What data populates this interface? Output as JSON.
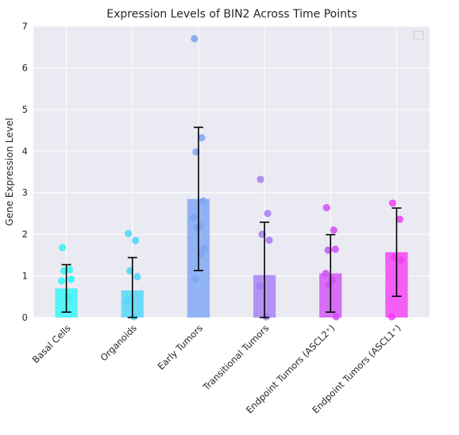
{
  "chart_data": {
    "type": "bar",
    "title": "Expression Levels of BIN2 Across Time Points",
    "xlabel": "",
    "ylabel": "Gene Expression Level",
    "ylim": [
      0,
      7
    ],
    "yticks": [
      0,
      1,
      2,
      3,
      4,
      5,
      6,
      7
    ],
    "grid": true,
    "legend": "top-right (empty)",
    "categories": [
      "Basal Cells",
      "Organoids",
      "Early Tumors",
      "Transitional Tumors",
      "Endpoint Tumors (ASCL2⁺)",
      "Endpoint Tumors (ASCL1⁺)"
    ],
    "values": [
      0.7,
      0.65,
      2.85,
      1.02,
      1.06,
      1.57
    ],
    "errors": [
      0.57,
      0.79,
      1.72,
      1.27,
      0.93,
      1.06
    ],
    "points": [
      [
        1.68,
        1.15,
        1.12,
        0.92,
        0.88,
        0.5
      ],
      [
        2.02,
        1.85,
        1.12,
        0.98,
        0.4,
        0.02
      ],
      [
        6.7,
        4.32,
        3.98,
        2.8,
        2.4,
        2.2,
        2.16,
        1.65,
        1.52,
        0.93
      ],
      [
        3.32,
        2.5,
        2.0,
        1.86,
        0.75,
        0.02
      ],
      [
        2.64,
        2.1,
        1.62,
        1.64,
        1.06,
        0.9,
        0.78,
        0.02
      ],
      [
        2.75,
        2.36,
        1.44,
        1.38,
        0.02
      ]
    ],
    "colors": [
      "#2ef5f5",
      "#4cd6f7",
      "#7aa5f5",
      "#a67cf5",
      "#cf4ff5",
      "#f53cf5"
    ]
  }
}
